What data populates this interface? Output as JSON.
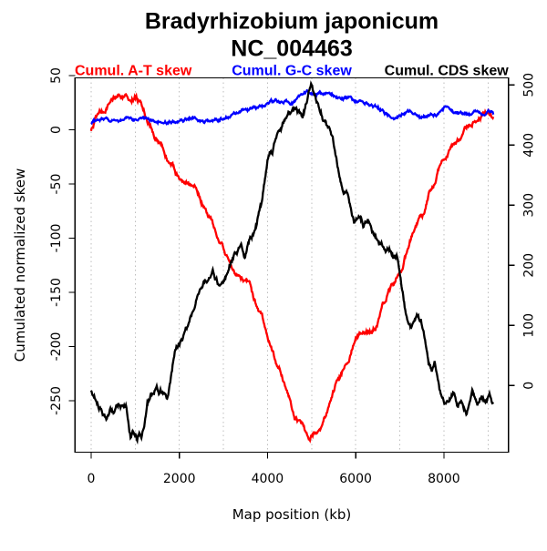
{
  "title": {
    "line1": "Bradyrhizobium japonicum",
    "line2": "NC_004463"
  },
  "legend": [
    {
      "label": "Cumul. A-T skew",
      "color": "#FF0000"
    },
    {
      "label": "Cumul. G-C skew",
      "color": "#0000FF"
    },
    {
      "label": "Cumul. CDS skew",
      "color": "#000000"
    }
  ],
  "axes": {
    "x": {
      "label": "Map position (kb)",
      "range": [
        -364,
        9464
      ],
      "ticks": [
        0,
        2000,
        4000,
        6000,
        8000
      ],
      "gridlines": [
        0,
        1000,
        2000,
        3000,
        4000,
        5000,
        6000,
        7000,
        8000,
        9000
      ]
    },
    "y_left": {
      "label": "Cumulated normalized skew",
      "range": [
        -297.5,
        47.9
      ],
      "ticks": [
        50,
        0,
        -50,
        -100,
        -150,
        -200,
        -250
      ]
    },
    "y_right": {
      "range": [
        -110.9,
        511.8
      ],
      "ticks": [
        0,
        100,
        200,
        300,
        400,
        500
      ]
    }
  },
  "colors": {
    "grid": "#BEBEBE",
    "axis": "#000000",
    "background": "#FFFFFF"
  },
  "chart_data": {
    "type": "line",
    "title": "Bradyrhizobium japonicum NC_004463",
    "xlabel": "Map position (kb)",
    "ylabel": "Cumulated normalized skew",
    "x_range_kb": [
      0,
      9120
    ],
    "ylim_left": [
      -297.5,
      47.9
    ],
    "ylim_right": [
      -110.9,
      511.8
    ],
    "grid": "vertical-dotted-every-1000kb",
    "legend_position": "top",
    "series": [
      {
        "id": "cumul-at-skew",
        "name": "Cumul. A-T skew",
        "color": "#FF0000",
        "axis": "left",
        "noise": 1.4,
        "points": [
          [
            0,
            -1
          ],
          [
            105,
            9
          ],
          [
            205,
            15
          ],
          [
            310,
            20
          ],
          [
            415,
            25
          ],
          [
            520,
            30
          ],
          [
            620,
            33
          ],
          [
            725,
            31
          ],
          [
            790,
            35
          ],
          [
            860,
            31
          ],
          [
            930,
            33
          ],
          [
            1000,
            31
          ],
          [
            1070,
            27
          ],
          [
            1140,
            23
          ],
          [
            1205,
            18
          ],
          [
            1275,
            9
          ],
          [
            1380,
            1
          ],
          [
            1485,
            -8
          ],
          [
            1620,
            -19
          ],
          [
            1760,
            -30
          ],
          [
            1860,
            -36
          ],
          [
            2000,
            -48
          ],
          [
            2100,
            -51
          ],
          [
            2250,
            -52
          ],
          [
            2380,
            -53
          ],
          [
            2585,
            -72
          ],
          [
            2760,
            -86
          ],
          [
            2895,
            -99
          ],
          [
            3000,
            -107
          ],
          [
            3172,
            -125
          ],
          [
            3310,
            -135
          ],
          [
            3450,
            -138
          ],
          [
            3585,
            -144
          ],
          [
            3725,
            -160
          ],
          [
            3863,
            -172
          ],
          [
            4000,
            -192
          ],
          [
            4180,
            -208
          ],
          [
            4350,
            -228
          ],
          [
            4500,
            -245
          ],
          [
            4615,
            -266
          ],
          [
            4700,
            -270
          ],
          [
            4850,
            -278
          ],
          [
            4950,
            -284
          ],
          [
            5050,
            -281
          ],
          [
            5170,
            -277
          ],
          [
            5315,
            -267
          ],
          [
            5450,
            -248
          ],
          [
            5550,
            -235
          ],
          [
            5655,
            -225
          ],
          [
            5750,
            -218
          ],
          [
            5850,
            -214
          ],
          [
            5940,
            -200
          ],
          [
            6000,
            -193
          ],
          [
            6100,
            -188
          ],
          [
            6250,
            -185
          ],
          [
            6485,
            -181
          ],
          [
            6600,
            -165
          ],
          [
            6700,
            -155
          ],
          [
            6800,
            -146
          ],
          [
            6900,
            -140
          ],
          [
            6995,
            -131
          ],
          [
            7100,
            -119
          ],
          [
            7205,
            -107
          ],
          [
            7345,
            -92
          ],
          [
            7430,
            -86
          ],
          [
            7510,
            -84
          ],
          [
            7585,
            -72
          ],
          [
            7655,
            -60
          ],
          [
            7760,
            -55
          ],
          [
            7830,
            -44
          ],
          [
            7900,
            -33
          ],
          [
            8000,
            -28
          ],
          [
            8070,
            -23
          ],
          [
            8175,
            -12
          ],
          [
            8270,
            -9
          ],
          [
            8345,
            -6
          ],
          [
            8485,
            2
          ],
          [
            8625,
            5
          ],
          [
            8760,
            12
          ],
          [
            8900,
            15
          ],
          [
            8960,
            18
          ],
          [
            9060,
            16
          ],
          [
            9120,
            12
          ]
        ]
      },
      {
        "id": "cumul-gc-skew",
        "name": "Cumul. G-C skew",
        "color": "#0000FF",
        "axis": "left",
        "noise": 0.9,
        "points": [
          [
            0,
            4
          ],
          [
            60,
            8
          ],
          [
            150,
            6
          ],
          [
            310,
            7
          ],
          [
            415,
            8
          ],
          [
            520,
            9
          ],
          [
            620,
            8
          ],
          [
            725,
            7
          ],
          [
            790,
            8
          ],
          [
            900,
            7
          ],
          [
            1000,
            9
          ],
          [
            1070,
            12
          ],
          [
            1205,
            10
          ],
          [
            1380,
            9
          ],
          [
            1550,
            10
          ],
          [
            1725,
            9
          ],
          [
            1900,
            10
          ],
          [
            2100,
            9
          ],
          [
            2280,
            10
          ],
          [
            2520,
            7
          ],
          [
            2790,
            8
          ],
          [
            3000,
            11
          ],
          [
            3300,
            14
          ],
          [
            3480,
            19
          ],
          [
            3655,
            18
          ],
          [
            4000,
            23
          ],
          [
            4200,
            25
          ],
          [
            4400,
            25
          ],
          [
            4622,
            27
          ],
          [
            4750,
            32
          ],
          [
            4895,
            37
          ],
          [
            5000,
            36
          ],
          [
            5150,
            33
          ],
          [
            5310,
            33
          ],
          [
            5450,
            31
          ],
          [
            5655,
            30
          ],
          [
            5900,
            28
          ],
          [
            6135,
            27
          ],
          [
            6300,
            25
          ],
          [
            6450,
            22
          ],
          [
            6620,
            18
          ],
          [
            6830,
            11
          ],
          [
            7000,
            12
          ],
          [
            7240,
            16
          ],
          [
            7450,
            12
          ],
          [
            7655,
            15
          ],
          [
            7860,
            13
          ],
          [
            8000,
            19
          ],
          [
            8100,
            21
          ],
          [
            8275,
            15
          ],
          [
            8485,
            16
          ],
          [
            8625,
            13
          ],
          [
            8760,
            18
          ],
          [
            8900,
            12
          ],
          [
            9005,
            15
          ],
          [
            9120,
            14
          ]
        ]
      },
      {
        "id": "cumul-cds-skew",
        "name": "Cumul. CDS skew",
        "color": "#000000",
        "axis": "left",
        "noise": 1.8,
        "points": [
          [
            0,
            -240
          ],
          [
            70,
            -246
          ],
          [
            205,
            -257
          ],
          [
            310,
            -263
          ],
          [
            415,
            -258
          ],
          [
            520,
            -261
          ],
          [
            620,
            -256
          ],
          [
            725,
            -258
          ],
          [
            790,
            -254
          ],
          [
            830,
            -264
          ],
          [
            895,
            -281
          ],
          [
            965,
            -277
          ],
          [
            1035,
            -284
          ],
          [
            1105,
            -278
          ],
          [
            1140,
            -284
          ],
          [
            1205,
            -274
          ],
          [
            1275,
            -253
          ],
          [
            1345,
            -246
          ],
          [
            1450,
            -242
          ],
          [
            1550,
            -243
          ],
          [
            1620,
            -240
          ],
          [
            1725,
            -246
          ],
          [
            1760,
            -239
          ],
          [
            1897,
            -204
          ],
          [
            2070,
            -193
          ],
          [
            2170,
            -183
          ],
          [
            2380,
            -160
          ],
          [
            2553,
            -144
          ],
          [
            2760,
            -134
          ],
          [
            2930,
            -144
          ],
          [
            3030,
            -140
          ],
          [
            3172,
            -125
          ],
          [
            3345,
            -110
          ],
          [
            3483,
            -116
          ],
          [
            3585,
            -104
          ],
          [
            3689,
            -95
          ],
          [
            3758,
            -86
          ],
          [
            3863,
            -72
          ],
          [
            4001,
            -33
          ],
          [
            4210,
            -8
          ],
          [
            4415,
            8
          ],
          [
            4560,
            18
          ],
          [
            4656,
            24
          ],
          [
            4795,
            11
          ],
          [
            4900,
            26
          ],
          [
            5000,
            38
          ],
          [
            5100,
            25
          ],
          [
            5200,
            15
          ],
          [
            5310,
            8
          ],
          [
            5420,
            -5
          ],
          [
            5515,
            -22
          ],
          [
            5600,
            -40
          ],
          [
            5690,
            -57
          ],
          [
            5790,
            -63
          ],
          [
            5880,
            -75
          ],
          [
            5965,
            -86
          ],
          [
            6070,
            -83
          ],
          [
            6170,
            -89
          ],
          [
            6275,
            -82
          ],
          [
            6415,
            -97
          ],
          [
            6620,
            -111
          ],
          [
            6860,
            -120
          ],
          [
            6930,
            -118
          ],
          [
            6995,
            -135
          ],
          [
            7135,
            -174
          ],
          [
            7240,
            -184
          ],
          [
            7350,
            -177
          ],
          [
            7480,
            -174
          ],
          [
            7585,
            -198
          ],
          [
            7655,
            -219
          ],
          [
            7725,
            -225
          ],
          [
            7790,
            -219
          ],
          [
            7900,
            -242
          ],
          [
            7965,
            -250
          ],
          [
            8105,
            -253
          ],
          [
            8210,
            -243
          ],
          [
            8310,
            -255
          ],
          [
            8415,
            -250
          ],
          [
            8520,
            -258
          ],
          [
            8655,
            -239
          ],
          [
            8760,
            -252
          ],
          [
            8865,
            -245
          ],
          [
            8965,
            -250
          ],
          [
            9035,
            -244
          ],
          [
            9120,
            -253
          ]
        ]
      }
    ]
  }
}
